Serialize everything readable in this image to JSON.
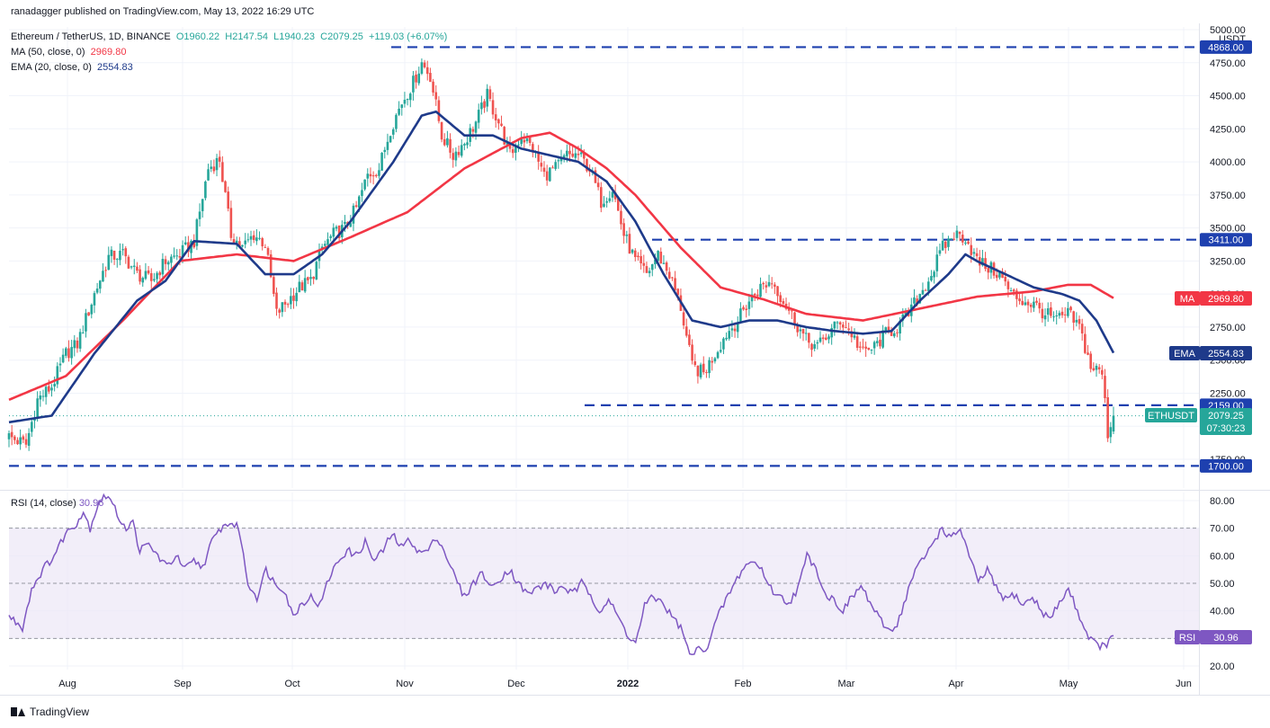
{
  "header": {
    "published": "ranadagger published on TradingView.com, May 13, 2022 16:29 UTC",
    "symbol_line": {
      "pair": "Ethereum / TetherUS, 1D, BINANCE",
      "open": "O1960.22",
      "high": "H2147.54",
      "low": "L1940.23",
      "close": "C2079.25",
      "change": "+119.03 (+6.07%)"
    },
    "ma_line": {
      "label": "MA (50, close, 0)",
      "value": "2969.80"
    },
    "ema_line": {
      "label": "EMA (20, close, 0)",
      "value": "2554.83"
    },
    "rsi_line": {
      "label": "RSI (14, close)",
      "value": "30.96"
    }
  },
  "footer": {
    "brand": "TradingView"
  },
  "colors": {
    "up": "#26a69a",
    "down": "#ef5350",
    "ma": "#f23645",
    "ema": "#1e3a8a",
    "rsi": "#7e57c2",
    "rsi_band": "#ede7f6",
    "level": "#1e40af",
    "price_tag": "#26a69a"
  },
  "chart_data": [
    {
      "type": "candlestick",
      "title": "Ethereum / TetherUS, 1D, BINANCE",
      "currency": "USDT",
      "y_axis": {
        "ticks": [
          "5000.00",
          "4750.00",
          "4500.00",
          "4250.00",
          "4000.00",
          "3750.00",
          "3500.00",
          "3250.00",
          "3000.00",
          "2750.00",
          "2500.00",
          "2250.00",
          "2000.00",
          "1750.00"
        ],
        "range": [
          1650,
          5050
        ]
      },
      "x_axis": {
        "ticks": [
          "Aug",
          "Sep",
          "Oct",
          "Nov",
          "Dec",
          "2022",
          "Feb",
          "Mar",
          "Apr",
          "May",
          "Jun"
        ]
      },
      "horizontal_levels": [
        {
          "value": 4868.0,
          "label": "4868.00"
        },
        {
          "value": 3411.0,
          "label": "3411.00"
        },
        {
          "value": 2159.0,
          "label": "2159.00"
        },
        {
          "value": 1700.0,
          "label": "1700.00"
        }
      ],
      "last_price": {
        "symbol": "ETHUSDT",
        "value": "2079.25",
        "countdown": "07:30:23"
      },
      "indicators": {
        "ma": {
          "tag": "MA",
          "value": "2969.80"
        },
        "ema": {
          "tag": "EMA",
          "value": "2554.83"
        }
      },
      "anchors": {
        "close": [
          [
            0,
            1920
          ],
          [
            6,
            1860
          ],
          [
            10,
            2200
          ],
          [
            15,
            2300
          ],
          [
            20,
            2550
          ],
          [
            24,
            2620
          ],
          [
            30,
            3000
          ],
          [
            35,
            3280
          ],
          [
            40,
            3300
          ],
          [
            45,
            3150
          ],
          [
            50,
            3100
          ],
          [
            55,
            3250
          ],
          [
            60,
            3300
          ],
          [
            65,
            3400
          ],
          [
            70,
            3950
          ],
          [
            74,
            4020
          ],
          [
            78,
            3450
          ],
          [
            82,
            3350
          ],
          [
            86,
            3450
          ],
          [
            90,
            3380
          ],
          [
            94,
            2850
          ],
          [
            98,
            2950
          ],
          [
            102,
            3050
          ],
          [
            106,
            3100
          ],
          [
            110,
            3350
          ],
          [
            114,
            3450
          ],
          [
            118,
            3500
          ],
          [
            122,
            3650
          ],
          [
            126,
            3900
          ],
          [
            130,
            3950
          ],
          [
            134,
            4250
          ],
          [
            138,
            4450
          ],
          [
            142,
            4600
          ],
          [
            145,
            4750
          ],
          [
            148,
            4650
          ],
          [
            152,
            4200
          ],
          [
            156,
            4050
          ],
          [
            160,
            4150
          ],
          [
            164,
            4300
          ],
          [
            168,
            4500
          ],
          [
            172,
            4300
          ],
          [
            176,
            4050
          ],
          [
            180,
            4200
          ],
          [
            184,
            4100
          ],
          [
            188,
            3900
          ],
          [
            192,
            3950
          ],
          [
            196,
            4050
          ],
          [
            200,
            4050
          ],
          [
            204,
            3950
          ],
          [
            208,
            3700
          ],
          [
            212,
            3800
          ],
          [
            216,
            3450
          ],
          [
            220,
            3250
          ],
          [
            224,
            3150
          ],
          [
            228,
            3300
          ],
          [
            232,
            3150
          ],
          [
            236,
            2900
          ],
          [
            240,
            2450
          ],
          [
            244,
            2400
          ],
          [
            248,
            2550
          ],
          [
            252,
            2700
          ],
          [
            256,
            2800
          ],
          [
            260,
            2950
          ],
          [
            264,
            3050
          ],
          [
            268,
            3100
          ],
          [
            272,
            2950
          ],
          [
            276,
            2800
          ],
          [
            280,
            2650
          ],
          [
            284,
            2600
          ],
          [
            288,
            2700
          ],
          [
            292,
            2800
          ],
          [
            296,
            2700
          ],
          [
            300,
            2550
          ],
          [
            304,
            2600
          ],
          [
            308,
            2700
          ],
          [
            312,
            2750
          ],
          [
            316,
            2850
          ],
          [
            320,
            3000
          ],
          [
            324,
            3150
          ],
          [
            328,
            3350
          ],
          [
            332,
            3450
          ],
          [
            336,
            3430
          ],
          [
            340,
            3250
          ],
          [
            344,
            3200
          ],
          [
            348,
            3150
          ],
          [
            352,
            3000
          ],
          [
            356,
            2950
          ],
          [
            360,
            2920
          ],
          [
            364,
            2850
          ],
          [
            368,
            2800
          ],
          [
            372,
            2850
          ],
          [
            376,
            2750
          ],
          [
            380,
            2450
          ],
          [
            384,
            2400
          ],
          [
            386,
            1950
          ],
          [
            388,
            2079
          ]
        ],
        "spread": 70
      },
      "ma_anchors": [
        [
          0,
          2200
        ],
        [
          20,
          2380
        ],
        [
          40,
          2800
        ],
        [
          60,
          3250
        ],
        [
          80,
          3300
        ],
        [
          100,
          3250
        ],
        [
          120,
          3430
        ],
        [
          140,
          3620
        ],
        [
          160,
          3950
        ],
        [
          180,
          4180
        ],
        [
          190,
          4220
        ],
        [
          200,
          4100
        ],
        [
          210,
          3950
        ],
        [
          220,
          3750
        ],
        [
          236,
          3350
        ],
        [
          250,
          3050
        ],
        [
          265,
          2960
        ],
        [
          280,
          2850
        ],
        [
          300,
          2800
        ],
        [
          320,
          2890
        ],
        [
          340,
          2980
        ],
        [
          360,
          3020
        ],
        [
          372,
          3070
        ],
        [
          380,
          3070
        ],
        [
          388,
          2969.8
        ]
      ],
      "ema_anchors": [
        [
          0,
          2030
        ],
        [
          15,
          2080
        ],
        [
          30,
          2550
        ],
        [
          45,
          2950
        ],
        [
          55,
          3100
        ],
        [
          65,
          3400
        ],
        [
          80,
          3380
        ],
        [
          90,
          3150
        ],
        [
          100,
          3150
        ],
        [
          110,
          3300
        ],
        [
          120,
          3550
        ],
        [
          135,
          4000
        ],
        [
          145,
          4350
        ],
        [
          150,
          4380
        ],
        [
          160,
          4200
        ],
        [
          170,
          4200
        ],
        [
          180,
          4100
        ],
        [
          190,
          4050
        ],
        [
          200,
          4000
        ],
        [
          210,
          3850
        ],
        [
          220,
          3550
        ],
        [
          230,
          3150
        ],
        [
          240,
          2800
        ],
        [
          250,
          2750
        ],
        [
          260,
          2800
        ],
        [
          270,
          2800
        ],
        [
          280,
          2750
        ],
        [
          290,
          2720
        ],
        [
          300,
          2700
        ],
        [
          310,
          2720
        ],
        [
          320,
          2950
        ],
        [
          330,
          3150
        ],
        [
          336,
          3300
        ],
        [
          340,
          3250
        ],
        [
          350,
          3150
        ],
        [
          360,
          3050
        ],
        [
          370,
          3000
        ],
        [
          376,
          2950
        ],
        [
          382,
          2800
        ],
        [
          388,
          2554.83
        ]
      ]
    },
    {
      "type": "line",
      "title": "RSI (14, close)",
      "y_axis": {
        "ticks": [
          "80.00",
          "70.00",
          "60.00",
          "50.00",
          "40.00",
          "30.00",
          "20.00"
        ],
        "range": [
          18,
          83
        ]
      },
      "bands": {
        "upper": 70,
        "middle": 50,
        "lower": 30
      },
      "last_value": {
        "tag": "RSI",
        "value": "30.96"
      },
      "anchors": [
        [
          0,
          38
        ],
        [
          6,
          34
        ],
        [
          10,
          48
        ],
        [
          15,
          55
        ],
        [
          20,
          60
        ],
        [
          25,
          68
        ],
        [
          30,
          72
        ],
        [
          33,
          76
        ],
        [
          36,
          70
        ],
        [
          40,
          80
        ],
        [
          44,
          82
        ],
        [
          48,
          75
        ],
        [
          52,
          70
        ],
        [
          55,
          72
        ],
        [
          58,
          62
        ],
        [
          62,
          64
        ],
        [
          66,
          60
        ],
        [
          70,
          56
        ],
        [
          74,
          60
        ],
        [
          78,
          55
        ],
        [
          82,
          58
        ],
        [
          86,
          56
        ],
        [
          90,
          65
        ],
        [
          94,
          70
        ],
        [
          98,
          72
        ],
        [
          102,
          70
        ],
        [
          106,
          50
        ],
        [
          110,
          45
        ],
        [
          114,
          55
        ],
        [
          118,
          50
        ],
        [
          122,
          48
        ],
        [
          126,
          38
        ],
        [
          130,
          43
        ],
        [
          134,
          45
        ],
        [
          138,
          42
        ],
        [
          142,
          52
        ],
        [
          146,
          58
        ],
        [
          150,
          62
        ],
        [
          154,
          60
        ],
        [
          158,
          65
        ],
        [
          162,
          58
        ],
        [
          166,
          62
        ],
        [
          170,
          68
        ],
        [
          174,
          63
        ],
        [
          178,
          66
        ],
        [
          182,
          61
        ],
        [
          186,
          62
        ],
        [
          190,
          67
        ],
        [
          194,
          60
        ],
        [
          198,
          52
        ],
        [
          202,
          45
        ],
        [
          206,
          50
        ],
        [
          210,
          54
        ],
        [
          214,
          48
        ],
        [
          218,
          52
        ],
        [
          222,
          55
        ],
        [
          226,
          50
        ],
        [
          230,
          46
        ],
        [
          234,
          48
        ],
        [
          238,
          50
        ],
        [
          242,
          47
        ],
        [
          246,
          49
        ],
        [
          250,
          46
        ],
        [
          254,
          50
        ],
        [
          258,
          46
        ],
        [
          262,
          40
        ],
        [
          266,
          44
        ],
        [
          270,
          38
        ],
        [
          274,
          32
        ],
        [
          278,
          28
        ],
        [
          282,
          42
        ],
        [
          286,
          45
        ],
        [
          290,
          43
        ],
        [
          294,
          38
        ],
        [
          298,
          34
        ],
        [
          302,
          24
        ],
        [
          306,
          26
        ],
        [
          310,
          27
        ],
        [
          314,
          37
        ],
        [
          318,
          44
        ],
        [
          322,
          50
        ],
        [
          326,
          56
        ],
        [
          330,
          58
        ],
        [
          334,
          55
        ],
        [
          338,
          48
        ],
        [
          342,
          45
        ],
        [
          346,
          43
        ],
        [
          350,
          48
        ],
        [
          354,
          60
        ],
        [
          358,
          56
        ],
        [
          362,
          46
        ],
        [
          366,
          44
        ],
        [
          370,
          40
        ],
        [
          374,
          45
        ],
        [
          378,
          49
        ],
        [
          382,
          43
        ],
        [
          386,
          37
        ],
        [
          390,
          33
        ],
        [
          394,
          35
        ],
        [
          398,
          45
        ],
        [
          402,
          55
        ],
        [
          406,
          59
        ],
        [
          410,
          65
        ],
        [
          414,
          70
        ],
        [
          418,
          66
        ],
        [
          422,
          70
        ],
        [
          426,
          60
        ],
        [
          430,
          50
        ],
        [
          434,
          55
        ],
        [
          438,
          48
        ],
        [
          442,
          44
        ],
        [
          446,
          46
        ],
        [
          450,
          42
        ],
        [
          454,
          45
        ],
        [
          458,
          40
        ],
        [
          462,
          37
        ],
        [
          466,
          43
        ],
        [
          470,
          48
        ],
        [
          474,
          40
        ],
        [
          478,
          32
        ],
        [
          482,
          28
        ],
        [
          486,
          27
        ],
        [
          490,
          31
        ]
      ]
    }
  ]
}
